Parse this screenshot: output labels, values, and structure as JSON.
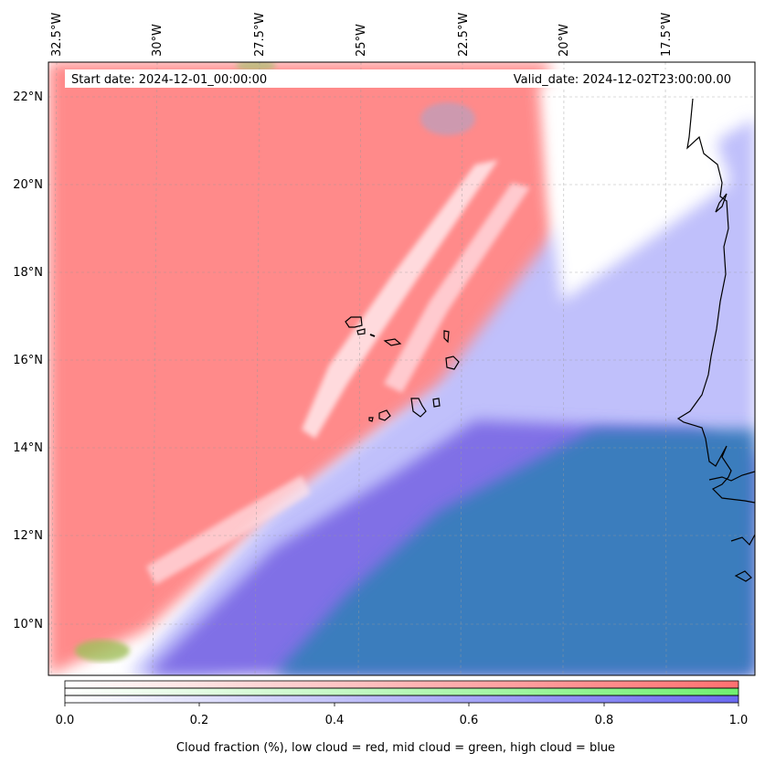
{
  "header": {
    "start_date": "Start date: 2024-12-01_00:00:00",
    "valid_date": "Valid_date: 2024-12-02T23:00:00.00"
  },
  "map": {
    "lon_labels": [
      "32.5°W",
      "30°W",
      "27.5°W",
      "25°W",
      "22.5°W",
      "20°W",
      "17.5°W"
    ],
    "lat_labels": [
      "22°N",
      "20°N",
      "18°N",
      "16°N",
      "14°N",
      "12°N",
      "10°N"
    ],
    "layer_colors": {
      "low_cloud": "#ff7f7f",
      "mid_cloud": "#7fff7f",
      "high_cloud": "#7f7fff",
      "overlap": "#3a7fbf"
    }
  },
  "colorbar": {
    "ticks": [
      "0.0",
      "0.2",
      "0.4",
      "0.6",
      "0.8",
      "1.0"
    ],
    "caption": "Cloud fraction (%), low cloud = red, mid cloud = green, high cloud = blue"
  }
}
